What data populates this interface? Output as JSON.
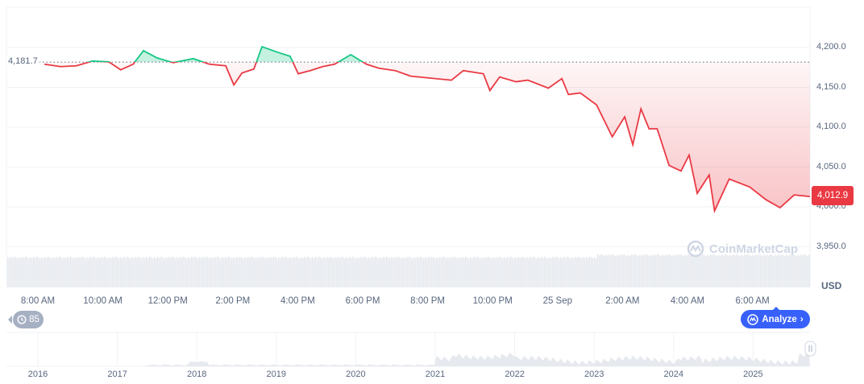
{
  "chart_data": {
    "type": "line",
    "currency_label": "USD",
    "baseline": 4181.7,
    "baseline_label": "4,181.7",
    "current_label": "4,012.9",
    "ylim": [
      3950,
      4200
    ],
    "y_ticks": [
      "4,200.0",
      "4,150.0",
      "4,100.0",
      "4,050.0",
      "4,000.0",
      "3,950.0"
    ],
    "y_tick_values": [
      4200,
      4150,
      4100,
      4050,
      4000,
      3950
    ],
    "x_ticks": [
      "8:00 AM",
      "10:00 AM",
      "12:00 PM",
      "2:00 PM",
      "4:00 PM",
      "6:00 PM",
      "8:00 PM",
      "10:00 PM",
      "25 Sep",
      "2:00 AM",
      "4:00 AM",
      "6:00 AM"
    ],
    "grid": true,
    "colors": {
      "up": "#16c784",
      "down": "#ea3943",
      "accent": "#3861fb"
    },
    "series": [
      {
        "time": [
          "08:12",
          "08:42",
          "09:11",
          "09:41",
          "10:11",
          "10:33",
          "10:56",
          "11:15",
          "11:40",
          "12:10",
          "12:47",
          "13:17",
          "13:47",
          "14:02",
          "14:17",
          "14:39",
          "14:54",
          "15:23",
          "15:46",
          "16:01",
          "16:23",
          "16:46",
          "17:08",
          "17:38",
          "18:07",
          "18:30",
          "19:00",
          "19:29",
          "19:59",
          "20:44",
          "21:06",
          "21:43",
          "21:55",
          "22:13",
          "22:43",
          "23:05",
          "23:43",
          "00:08",
          "00:20",
          "00:42",
          "01:12",
          "01:41",
          "02:04",
          "02:19",
          "02:34",
          "02:49",
          "03:04",
          "03:26",
          "03:48",
          "04:03",
          "04:18",
          "04:40",
          "04:50",
          "05:17",
          "05:55",
          "06:25",
          "06:51",
          "07:17",
          "07:46"
        ],
        "values": [
          4179,
          4176,
          4177,
          4183,
          4182,
          4172,
          4179,
          4196,
          4187,
          4181,
          4186,
          4179,
          4177,
          4153,
          4168,
          4173,
          4201,
          4194,
          4189,
          4167,
          4171,
          4176,
          4179,
          4191,
          4179,
          4174,
          4171,
          4164,
          4162,
          4159,
          4171,
          4167,
          4146,
          4163,
          4157,
          4159,
          4149,
          4161,
          4141,
          4143,
          4128,
          4088,
          4113,
          4078,
          4123,
          4098,
          4098,
          4052,
          4045,
          4065,
          4017,
          4040,
          3995,
          4035,
          4025,
          4009,
          3999,
          4015,
          4013
        ]
      }
    ],
    "navigator_years": [
      "2016",
      "2017",
      "2018",
      "2019",
      "2020",
      "2021",
      "2022",
      "2023",
      "2024",
      "2025"
    ]
  },
  "ui": {
    "watermark": "CoinMarketCap",
    "analyze_label": "Analyze",
    "history_count": "85"
  }
}
